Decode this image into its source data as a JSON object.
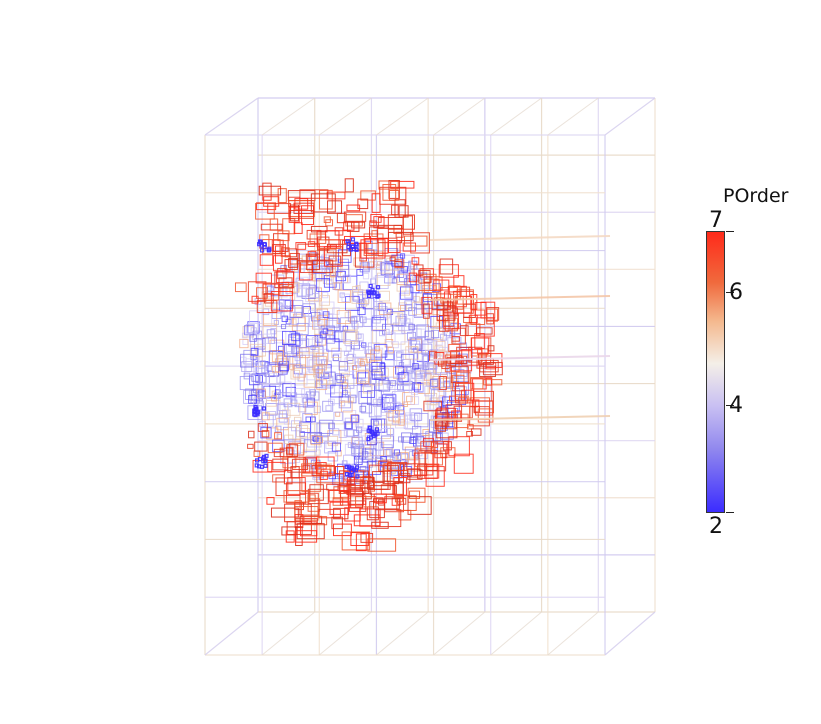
{
  "legend": {
    "title": "POrder",
    "min_label": "2",
    "max_label": "7",
    "ticks": [
      "4",
      "6"
    ],
    "min": 2,
    "max": 7,
    "colors": {
      "low": "#3b2cff",
      "mid": "#f4efe8",
      "high": "#ff2a1a"
    }
  }
}
